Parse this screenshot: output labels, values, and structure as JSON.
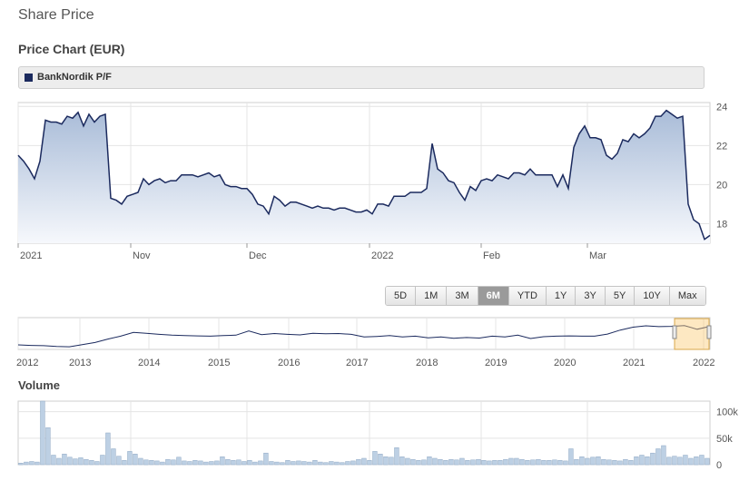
{
  "page": {
    "title": "Share Price",
    "chart_title": "Price Chart (EUR)"
  },
  "legend": {
    "label": "BankNordik P/F",
    "color": "#1b2a5e"
  },
  "range_buttons": [
    "5D",
    "1M",
    "3M",
    "6M",
    "YTD",
    "1Y",
    "3Y",
    "5Y",
    "10Y",
    "Max"
  ],
  "active_range": "6M",
  "volume": {
    "title": "Volume"
  },
  "chart_data": [
    {
      "type": "area",
      "title": "Price Chart (EUR)",
      "series_name": "BankNordik P/F",
      "x_tick_labels": [
        "2021",
        "Nov",
        "Dec",
        "2022",
        "Feb",
        "Mar"
      ],
      "y_ticks": [
        18,
        20,
        22,
        24
      ],
      "ylim": [
        17.0,
        24.2
      ],
      "grid": true,
      "values": [
        21.5,
        21.2,
        20.8,
        20.3,
        21.2,
        23.3,
        23.2,
        23.2,
        23.1,
        23.5,
        23.4,
        23.7,
        23.0,
        23.6,
        23.2,
        23.5,
        23.6,
        19.3,
        19.2,
        19.0,
        19.4,
        19.5,
        19.6,
        20.3,
        20.0,
        20.2,
        20.3,
        20.1,
        20.2,
        20.2,
        20.5,
        20.5,
        20.5,
        20.4,
        20.5,
        20.6,
        20.4,
        20.5,
        20.0,
        19.9,
        19.9,
        19.8,
        19.8,
        19.5,
        19.0,
        18.9,
        18.5,
        19.4,
        19.2,
        18.9,
        19.1,
        19.1,
        19.0,
        18.9,
        18.8,
        18.9,
        18.8,
        18.8,
        18.7,
        18.8,
        18.8,
        18.7,
        18.6,
        18.6,
        18.7,
        18.5,
        19.0,
        19.0,
        18.9,
        19.4,
        19.4,
        19.4,
        19.6,
        19.6,
        19.6,
        19.8,
        22.1,
        20.8,
        20.6,
        20.2,
        20.1,
        19.6,
        19.2,
        19.9,
        19.7,
        20.2,
        20.3,
        20.2,
        20.5,
        20.4,
        20.3,
        20.6,
        20.6,
        20.5,
        20.8,
        20.5,
        20.5,
        20.5,
        20.5,
        19.9,
        20.5,
        19.8,
        21.9,
        22.6,
        23.0,
        22.4,
        22.4,
        22.3,
        21.5,
        21.3,
        21.6,
        22.3,
        22.2,
        22.6,
        22.4,
        22.6,
        22.9,
        23.5,
        23.5,
        23.8,
        23.6,
        23.4,
        23.5,
        19.0,
        18.2,
        18.0,
        17.2,
        17.4
      ],
      "color": "#1b2a5e"
    },
    {
      "type": "line",
      "title": "",
      "x_tick_labels": [
        "2012",
        "2013",
        "2014",
        "2015",
        "2016",
        "2017",
        "2018",
        "2019",
        "2020",
        "2021",
        "2022"
      ],
      "values": [
        8.9,
        8.7,
        8.6,
        8.3,
        8.2,
        9.0,
        9.8,
        11.1,
        12.2,
        13.6,
        13.3,
        12.9,
        12.6,
        12.4,
        12.3,
        12.2,
        12.4,
        12.6,
        14.2,
        12.8,
        13.2,
        12.9,
        12.7,
        13.3,
        13.1,
        13.2,
        12.9,
        11.9,
        12.1,
        12.4,
        11.9,
        12.2,
        11.6,
        11.9,
        11.4,
        11.7,
        11.5,
        12.2,
        11.9,
        12.6,
        11.3,
        12.0,
        12.2,
        12.3,
        12.2,
        12.2,
        13.0,
        14.5,
        15.6,
        16.1,
        15.8,
        15.9,
        16.2,
        14.8,
        15.9
      ],
      "selection": "6M",
      "color": "#1b2a5e"
    },
    {
      "type": "bar",
      "title": "Volume",
      "y_tick_labels": [
        "0",
        "50k",
        "100k"
      ],
      "ylim": [
        0,
        120000
      ],
      "values": [
        3000,
        5000,
        6000,
        5000,
        120000,
        70000,
        18000,
        12000,
        20000,
        14000,
        11000,
        13000,
        10000,
        8000,
        6000,
        18000,
        60000,
        30000,
        16000,
        8000,
        25000,
        20000,
        12000,
        9000,
        8000,
        7000,
        5000,
        10000,
        9000,
        14000,
        7000,
        6000,
        8000,
        7000,
        5000,
        6000,
        7000,
        15000,
        10000,
        8000,
        9000,
        6000,
        8000,
        5000,
        7000,
        22000,
        6000,
        5000,
        4000,
        8000,
        6000,
        7000,
        6000,
        5000,
        8000,
        5000,
        4000,
        6000,
        5000,
        4000,
        6000,
        7000,
        10000,
        12000,
        8000,
        25000,
        20000,
        15000,
        14000,
        32000,
        15000,
        12000,
        10000,
        8000,
        9000,
        15000,
        12000,
        10000,
        8000,
        10000,
        9000,
        12000,
        8000,
        9000,
        10000,
        8000,
        7000,
        8000,
        8000,
        10000,
        12000,
        12000,
        10000,
        8000,
        9000,
        10000,
        8000,
        8000,
        9000,
        8000,
        7000,
        30000,
        10000,
        15000,
        12000,
        14000,
        15000,
        10000,
        9000,
        8000,
        7000,
        10000,
        8000,
        15000,
        18000,
        15000,
        22000,
        30000,
        36000,
        14000,
        16000,
        14000,
        18000,
        12000,
        15000,
        18000,
        12000
      ],
      "color": "#bdd0e4"
    }
  ]
}
